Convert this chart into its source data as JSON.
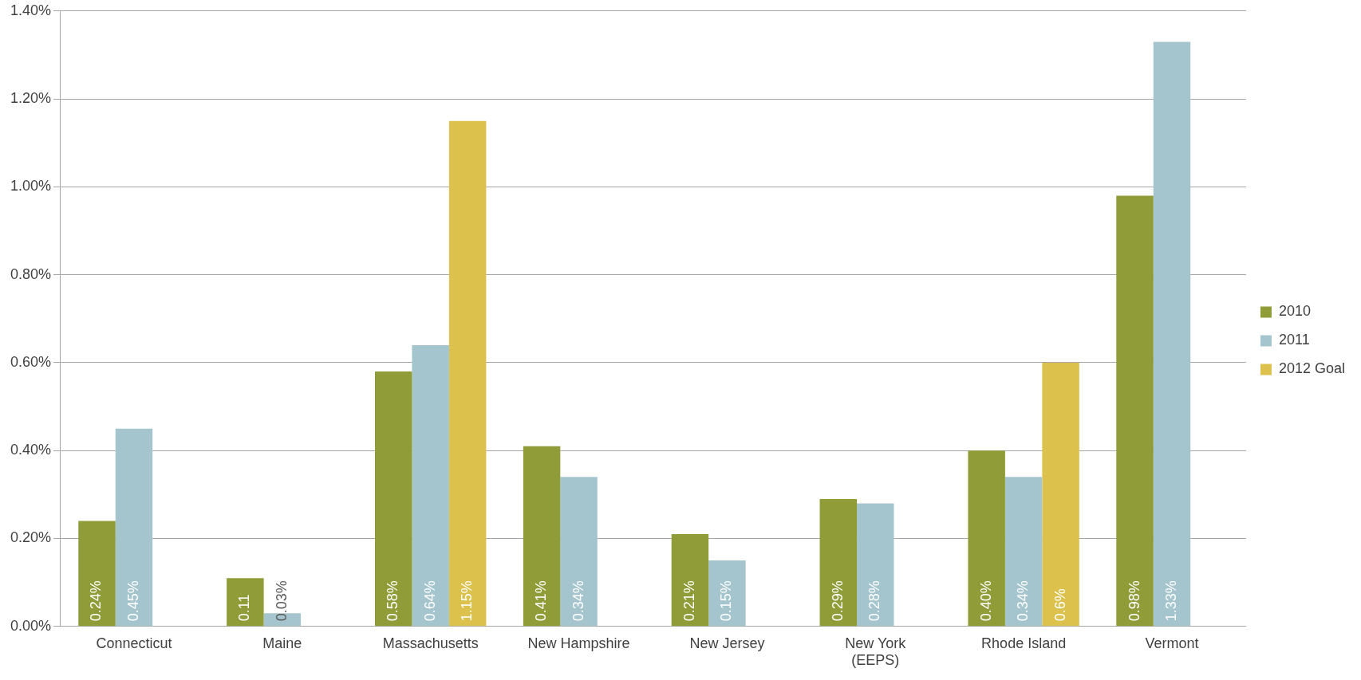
{
  "chart_data": {
    "type": "bar",
    "categories": [
      "Connecticut",
      "Maine",
      "Massachusetts",
      "New Hampshire",
      "New Jersey",
      "New York\n(EEPS)",
      "Rhode Island",
      "Vermont"
    ],
    "series": [
      {
        "name": "2010",
        "color": "#8f9c37",
        "values": [
          0.24,
          0.11,
          0.58,
          0.41,
          0.21,
          0.29,
          0.4,
          0.98
        ],
        "value_labels": [
          "0.24%",
          "0.11",
          "0.58%",
          "0.41%",
          "0.21%",
          "0.29%",
          "0.40%",
          "0.98%"
        ]
      },
      {
        "name": "2011",
        "color": "#a5c5ce",
        "values": [
          0.45,
          0.03,
          0.64,
          0.34,
          0.15,
          0.28,
          0.34,
          1.33
        ],
        "value_labels": [
          "0.45%",
          "0.03%",
          "0.64%",
          "0.34%",
          "0.15%",
          "0.28%",
          "0.34%",
          "1.33%"
        ]
      },
      {
        "name": "2012 Goal",
        "color": "#dcc24d",
        "values": [
          null,
          null,
          1.15,
          null,
          null,
          null,
          0.6,
          null
        ],
        "value_labels": [
          null,
          null,
          "1.15%",
          null,
          null,
          null,
          "0.6%",
          null
        ]
      }
    ],
    "ylim": [
      0,
      1.4
    ],
    "yticks": [
      {
        "value": 0,
        "label": "0.00%"
      },
      {
        "value": 0.2,
        "label": "0.20%"
      },
      {
        "value": 0.4,
        "label": "0.40%"
      },
      {
        "value": 0.6,
        "label": "0.60%"
      },
      {
        "value": 0.8,
        "label": "0.80%"
      },
      {
        "value": 1,
        "label": "1.00%"
      },
      {
        "value": 1.2,
        "label": "1.20%"
      },
      {
        "value": 1.4,
        "label": "1.40%"
      }
    ],
    "grid": "y",
    "legend": "right"
  }
}
